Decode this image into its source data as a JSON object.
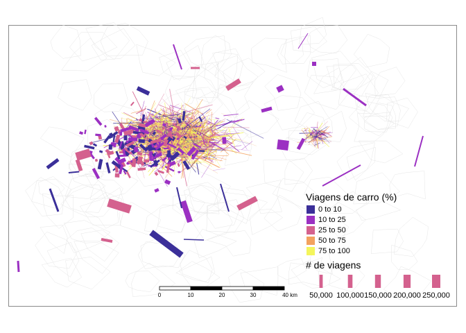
{
  "legend_color": {
    "title": "Viagens de carro (%)",
    "items": [
      {
        "label": "0 to 10",
        "color": "#3b2f99"
      },
      {
        "label": "10 to 25",
        "color": "#9b30c2"
      },
      {
        "label": "25 to 50",
        "color": "#d4618e"
      },
      {
        "label": "50 to 75",
        "color": "#f3a25e"
      },
      {
        "label": "75 to 100",
        "color": "#f4f55c"
      }
    ]
  },
  "legend_size": {
    "title": "# de viagens",
    "items": [
      {
        "label": "50,000",
        "value": 50000
      },
      {
        "label": "100,000",
        "value": 100000
      },
      {
        "label": "150,000",
        "value": 150000
      },
      {
        "label": "200,000",
        "value": 200000
      },
      {
        "label": "250,000",
        "value": 250000
      }
    ]
  },
  "scale_bar": {
    "ticks": [
      "0",
      "10",
      "20",
      "30",
      "40 km"
    ]
  }
}
